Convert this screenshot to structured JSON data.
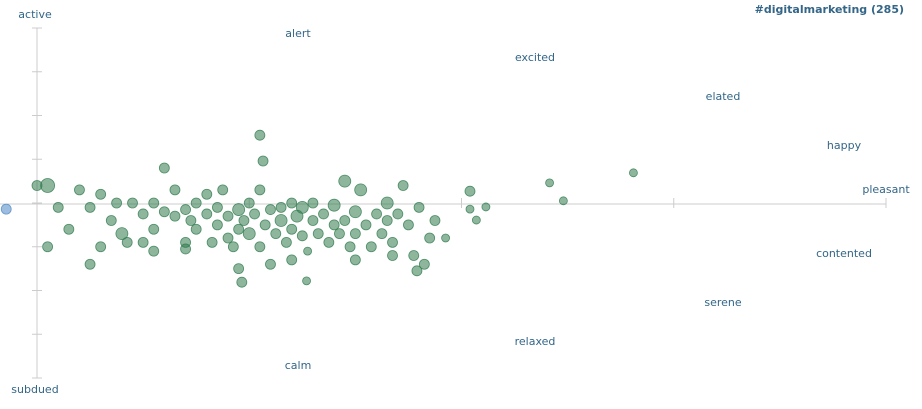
{
  "chart_data": {
    "type": "scatter",
    "title": "#digitalmarketing (285)",
    "labels": {
      "active": "active",
      "alert": "alert",
      "excited": "excited",
      "elated": "elated",
      "happy": "happy",
      "pleasant": "pleasant",
      "contented": "contented",
      "serene": "serene",
      "relaxed": "relaxed",
      "calm": "calm",
      "subdued": "subdued"
    },
    "xlim": [
      1,
      9
    ],
    "xticks": [
      1,
      3,
      5,
      7,
      9
    ],
    "ylim": [
      1,
      9
    ],
    "yticks": [
      1,
      2,
      3,
      4,
      5,
      6,
      7,
      8,
      9
    ],
    "series": [
      {
        "color": "#2f7a4c",
        "points": [
          [
            1.0,
            5.4,
            5
          ],
          [
            1.1,
            5.4,
            7
          ],
          [
            1.2,
            4.9,
            5
          ],
          [
            1.3,
            4.4,
            5
          ],
          [
            1.4,
            5.3,
            5
          ],
          [
            1.5,
            4.9,
            5
          ],
          [
            1.6,
            4.0,
            5
          ],
          [
            1.6,
            5.2,
            5
          ],
          [
            1.7,
            4.6,
            5
          ],
          [
            1.75,
            5.0,
            5
          ],
          [
            1.8,
            4.3,
            6
          ],
          [
            1.85,
            4.1,
            5
          ],
          [
            1.9,
            5.0,
            5
          ],
          [
            2.0,
            4.75,
            5
          ],
          [
            2.0,
            4.1,
            5
          ],
          [
            2.1,
            5.0,
            5
          ],
          [
            2.1,
            4.4,
            5
          ],
          [
            2.2,
            4.8,
            5
          ],
          [
            2.2,
            5.8,
            5
          ],
          [
            2.3,
            4.7,
            5
          ],
          [
            2.3,
            5.3,
            5
          ],
          [
            2.4,
            4.1,
            5
          ],
          [
            2.4,
            4.85,
            5
          ],
          [
            2.45,
            4.6,
            5
          ],
          [
            2.5,
            5.0,
            5
          ],
          [
            2.5,
            4.4,
            5
          ],
          [
            2.6,
            4.75,
            5
          ],
          [
            2.6,
            5.2,
            5
          ],
          [
            2.65,
            4.1,
            5
          ],
          [
            2.7,
            4.9,
            5
          ],
          [
            2.7,
            4.5,
            5
          ],
          [
            2.75,
            5.3,
            5
          ],
          [
            2.8,
            4.7,
            5
          ],
          [
            2.8,
            4.2,
            5
          ],
          [
            2.85,
            4.0,
            5
          ],
          [
            2.9,
            4.85,
            6
          ],
          [
            2.9,
            4.4,
            5
          ],
          [
            2.95,
            4.6,
            5
          ],
          [
            3.0,
            5.0,
            5
          ],
          [
            3.0,
            4.3,
            6
          ],
          [
            3.05,
            4.75,
            5
          ],
          [
            3.1,
            5.3,
            5
          ],
          [
            3.1,
            4.0,
            5
          ],
          [
            3.1,
            6.55,
            5
          ],
          [
            3.13,
            5.96,
            5
          ],
          [
            3.15,
            4.5,
            5
          ],
          [
            3.2,
            4.85,
            5
          ],
          [
            3.25,
            4.3,
            5
          ],
          [
            3.3,
            4.9,
            5
          ],
          [
            3.3,
            4.6,
            6
          ],
          [
            3.35,
            4.1,
            5
          ],
          [
            3.4,
            5.0,
            5
          ],
          [
            3.4,
            4.4,
            5
          ],
          [
            3.45,
            4.7,
            6
          ],
          [
            3.5,
            4.25,
            5
          ],
          [
            3.5,
            4.9,
            6
          ],
          [
            3.55,
            3.9,
            4
          ],
          [
            3.6,
            4.6,
            5
          ],
          [
            3.6,
            5.0,
            5
          ],
          [
            3.65,
            4.3,
            5
          ],
          [
            3.7,
            4.75,
            5
          ],
          [
            3.75,
            4.1,
            5
          ],
          [
            3.8,
            4.5,
            5
          ],
          [
            3.8,
            4.95,
            6
          ],
          [
            3.85,
            4.3,
            5
          ],
          [
            3.9,
            5.5,
            6
          ],
          [
            3.9,
            4.6,
            5
          ],
          [
            3.95,
            4.0,
            5
          ],
          [
            4.0,
            4.8,
            6
          ],
          [
            4.0,
            4.3,
            5
          ],
          [
            4.05,
            5.3,
            6
          ],
          [
            4.1,
            4.5,
            5
          ],
          [
            4.15,
            4.0,
            5
          ],
          [
            4.2,
            4.75,
            5
          ],
          [
            4.25,
            4.3,
            5
          ],
          [
            4.3,
            5.0,
            6
          ],
          [
            4.3,
            4.6,
            5
          ],
          [
            4.35,
            4.1,
            5
          ],
          [
            4.4,
            4.75,
            5
          ],
          [
            4.45,
            5.4,
            5
          ],
          [
            4.5,
            4.5,
            5
          ],
          [
            4.55,
            3.8,
            5
          ],
          [
            4.58,
            3.45,
            5
          ],
          [
            4.6,
            4.9,
            5
          ],
          [
            4.65,
            3.6,
            5
          ],
          [
            4.7,
            4.2,
            5
          ],
          [
            4.75,
            4.6,
            5
          ],
          [
            4.85,
            4.2,
            4
          ],
          [
            2.93,
            3.19,
            5
          ],
          [
            3.54,
            3.22,
            4
          ],
          [
            5.08,
            5.27,
            5
          ],
          [
            5.23,
            4.91,
            4
          ],
          [
            5.14,
            4.61,
            4
          ],
          [
            5.08,
            4.86,
            4
          ],
          [
            5.83,
            5.46,
            4
          ],
          [
            5.96,
            5.05,
            4
          ],
          [
            6.62,
            5.69,
            4
          ],
          [
            1.1,
            4.0,
            5
          ],
          [
            1.5,
            3.6,
            5
          ],
          [
            2.1,
            3.9,
            5
          ],
          [
            2.9,
            3.5,
            5
          ],
          [
            3.4,
            3.7,
            5
          ],
          [
            4.0,
            3.7,
            5
          ],
          [
            4.35,
            3.8,
            5
          ],
          [
            2.4,
            3.95,
            5
          ],
          [
            3.2,
            3.6,
            5
          ]
        ]
      },
      {
        "color": "#4a86c5",
        "points": [
          [
            0.71,
            4.86,
            5
          ]
        ]
      }
    ]
  }
}
